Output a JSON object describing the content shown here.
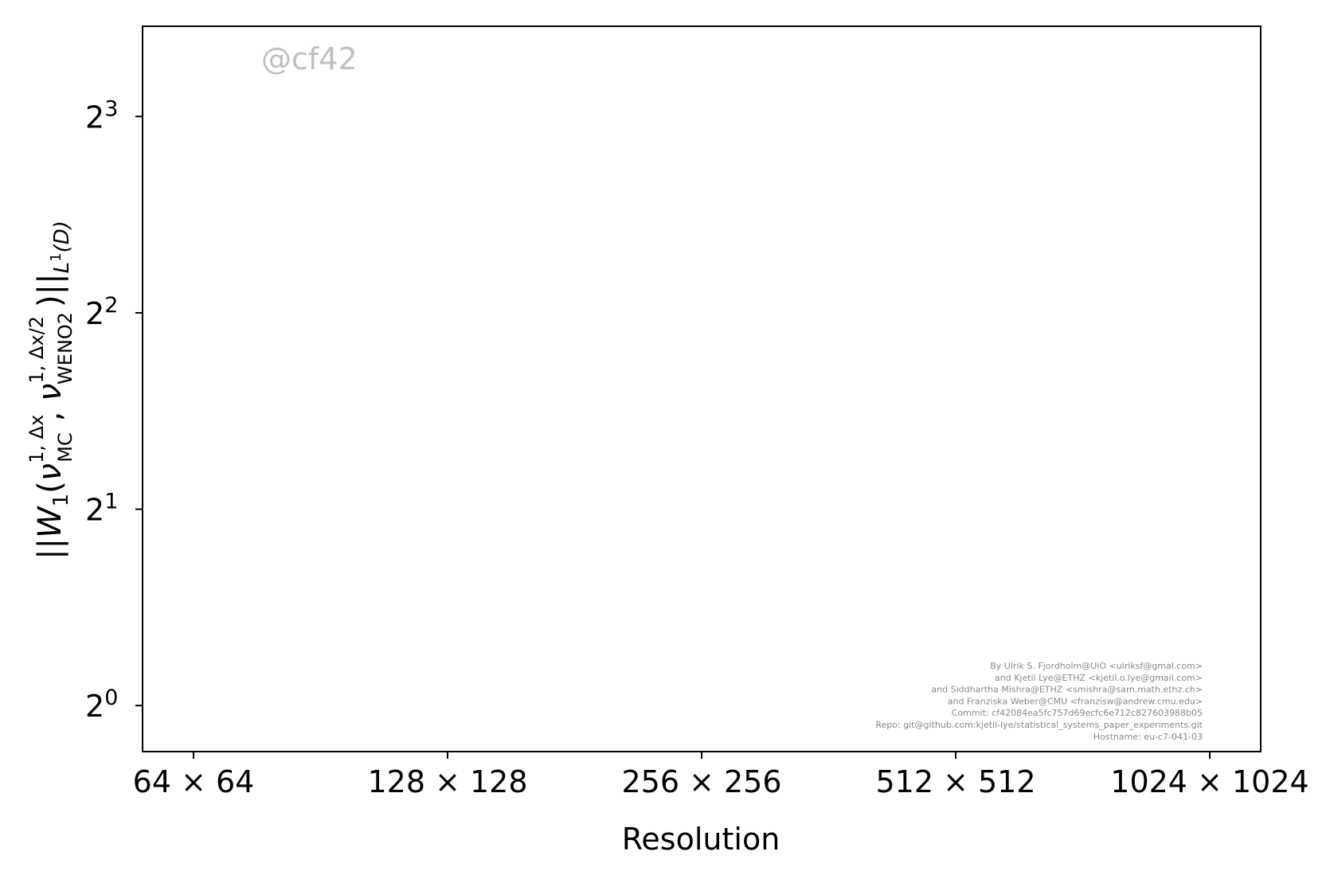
{
  "chart_data": {
    "type": "line",
    "title": "",
    "xlabel": "Resolution",
    "ylabel": {
      "norm_open": "||",
      "W": "W",
      "W_sub": "1",
      "open_paren": "(",
      "nu1": "ν",
      "nu1_sup": "1, Δx",
      "nu1_sub": "MC",
      "comma": ", ",
      "nu2": "ν",
      "nu2_sup": "1, Δx/2",
      "nu2_sub": "WENO2",
      "close_paren": ")||",
      "norm_sub": "L",
      "norm_sub_sup": "1",
      "norm_sub_tail": "(D)"
    },
    "categories": [
      "64 × 64",
      "128 × 128",
      "256 × 256",
      "512 × 512",
      "1024 × 1024"
    ],
    "x_scale": "log2",
    "x": [
      64,
      128,
      256,
      512,
      1024
    ],
    "y_scale": "log2",
    "ylim": [
      0.85,
      11.0
    ],
    "yticks": [
      {
        "value": 1,
        "base": "2",
        "exp": "0"
      },
      {
        "value": 2,
        "base": "2",
        "exp": "1"
      },
      {
        "value": 4,
        "base": "2",
        "exp": "2"
      },
      {
        "value": 8,
        "base": "2",
        "exp": "3"
      }
    ],
    "series": [],
    "grid": false,
    "legend": "none",
    "watermark": "@cf42",
    "credits": [
      "By Ulrik S. Fjordholm@UiO <ulriksf@gmal.com>",
      "and Kjetil Lye@ETHZ <kjetil.o.lye@gmail.com>",
      "and Siddhartha Mishra@ETHZ <smishra@sam.math.ethz.ch>",
      "and Franziska Weber@CMU <franzisw@andrew.cmu.edu>",
      "Commit: cf42084ea5fc757d69ecfc6e712c827603988b05",
      "Repo: git@github.com:kjetil-lye/statistical_systems_paper_experiments.git",
      "Hostname: eu-c7-041-03"
    ],
    "colors": {
      "axes": "#000000",
      "watermark": "#bfbfbf",
      "credits": "#888888",
      "background": "#ffffff"
    }
  }
}
